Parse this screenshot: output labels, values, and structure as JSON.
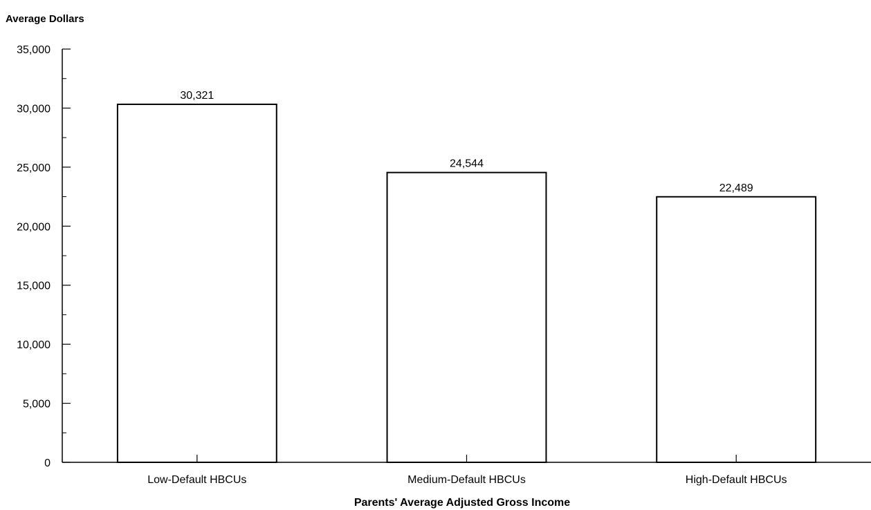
{
  "chart_data": {
    "type": "bar",
    "title": "",
    "ylabel": "Average Dollars",
    "xlabel": "Parents' Average Adjusted Gross Income",
    "categories": [
      "Low-Default HBCUs",
      "Medium-Default HBCUs",
      "High-Default HBCUs"
    ],
    "values": [
      30321,
      24544,
      22489
    ],
    "value_labels": [
      "30,321",
      "24,544",
      "22,489"
    ],
    "ylim": [
      0,
      35000
    ],
    "yticks": [
      0,
      5000,
      10000,
      15000,
      20000,
      25000,
      30000,
      35000
    ],
    "ytick_labels": [
      "0",
      "5,000",
      "10,000",
      "15,000",
      "20,000",
      "25,000",
      "30,000",
      "35,000"
    ],
    "grid": false,
    "legend": "none",
    "bar_fill": "#ffffff",
    "bar_stroke": "#000000"
  }
}
